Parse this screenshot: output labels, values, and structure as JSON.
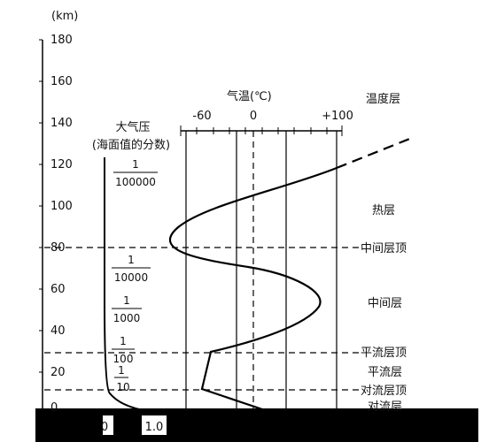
{
  "axis": {
    "unit": "(km)",
    "ticks": [
      "180",
      "160",
      "140",
      "120",
      "100",
      "80",
      "60",
      "40",
      "20",
      "0"
    ]
  },
  "pressure": {
    "title_line1": "大气压",
    "title_line2": "(海面值的分数)",
    "fractions": [
      {
        "num": "1",
        "den": "100000"
      },
      {
        "num": "1",
        "den": "10000"
      },
      {
        "num": "1",
        "den": "1000"
      },
      {
        "num": "1",
        "den": "100"
      },
      {
        "num": "1",
        "den": "10"
      }
    ],
    "bottom_left": "0",
    "bottom_right": "1.0"
  },
  "temperature": {
    "title": "气温(℃)",
    "ticks": [
      "-60",
      "0",
      "+100"
    ]
  },
  "layers": {
    "header": "温度层",
    "thermosphere": "热层",
    "mesopause": "中间层顶",
    "mesosphere": "中间层",
    "stratopause": "平流层顶",
    "stratosphere": "平流层",
    "tropopause": "对流层顶",
    "troposphere": "对流层"
  }
}
